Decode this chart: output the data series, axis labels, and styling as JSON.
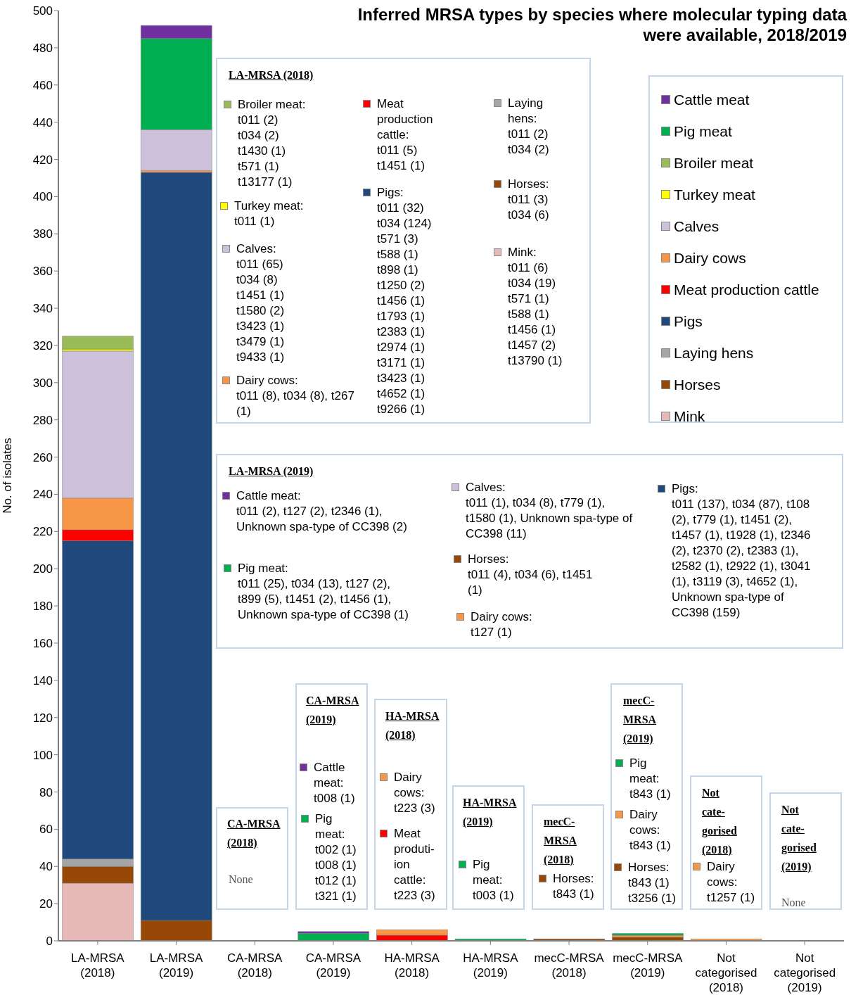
{
  "chart_data": {
    "type": "bar",
    "stacked": true,
    "title": "Inferred MRSA types by species where molecular typing data were available, 2018/2019",
    "ylabel": "No. of isolates",
    "categories": [
      "LA-MRSA (2018)",
      "LA-MRSA (2019)",
      "CA-MRSA (2018)",
      "CA-MRSA (2019)",
      "HA-MRSA (2018)",
      "HA-MRSA (2019)",
      "mecC-MRSA (2018)",
      "mecC-MRSA (2019)",
      "Not categorised (2018)",
      "Not categorised (2019)"
    ],
    "series": [
      {
        "name": "Mink",
        "color": "#e6b9b8",
        "values": [
          31,
          0,
          0,
          0,
          0,
          0,
          0,
          0,
          0,
          0
        ]
      },
      {
        "name": "Horses",
        "color": "#974706",
        "values": [
          9,
          11,
          0,
          0,
          0,
          0,
          1,
          2,
          0,
          0
        ]
      },
      {
        "name": "Laying hens",
        "color": "#a6a6a6",
        "values": [
          4,
          0,
          0,
          0,
          0,
          0,
          0,
          0,
          0,
          0
        ]
      },
      {
        "name": "Pigs",
        "color": "#1f497d",
        "values": [
          171,
          402,
          0,
          0,
          0,
          0,
          0,
          0,
          0,
          0
        ]
      },
      {
        "name": "Meat production cattle",
        "color": "#ff0000",
        "values": [
          6,
          0,
          0,
          0,
          3,
          0,
          0,
          0,
          0,
          0
        ]
      },
      {
        "name": "Dairy cows",
        "color": "#f79646",
        "values": [
          17,
          1,
          0,
          0,
          3,
          0,
          0,
          1,
          1,
          0
        ]
      },
      {
        "name": "Calves",
        "color": "#ccc0da",
        "values": [
          79,
          22,
          0,
          0,
          0,
          0,
          0,
          0,
          0,
          0
        ]
      },
      {
        "name": "Turkey meat",
        "color": "#ffff00",
        "values": [
          1,
          0,
          0,
          0,
          0,
          0,
          0,
          0,
          0,
          0
        ]
      },
      {
        "name": "Broiler meat",
        "color": "#9bbb59",
        "values": [
          7,
          0,
          0,
          0,
          0,
          0,
          0,
          0,
          0,
          0
        ]
      },
      {
        "name": "Pig meat",
        "color": "#00b050",
        "values": [
          0,
          49,
          0,
          4,
          0,
          1,
          0,
          1,
          0,
          0
        ]
      },
      {
        "name": "Cattle meat",
        "color": "#7030a0",
        "values": [
          0,
          7,
          0,
          1,
          0,
          0,
          0,
          0,
          0,
          0
        ]
      }
    ],
    "ylim": [
      0,
      500
    ],
    "yticks": [
      0,
      20,
      40,
      60,
      80,
      100,
      120,
      140,
      160,
      180,
      200,
      220,
      240,
      260,
      280,
      300,
      320,
      340,
      360,
      380,
      400,
      420,
      440,
      460,
      480,
      500
    ],
    "grid": false,
    "legend": "top right",
    "annotations": [
      "LA-MRSA (2018)",
      "Broiler meat:\nt011 (2)\nt034 (2)\nt1430 (1)\nt571 (1)\nt13177 (1)",
      "Turkey meat:\nt011 (1)",
      "Calves:\nt011 (65)\nt034 (8)\nt1451 (1)\nt1580 (2)\nt3423 (1)\nt3479 (1)\nt9433 (1)",
      "Dairy cows:\nt011 (8), t034 (8), t267 (1)",
      "Meat production cattle:\nt011 (5)\nt1451 (1)",
      "Pigs:\nt011 (32)\nt034 (124)\nt571 (3)\nt588 (1)\nt898 (1)\nt1250 (2)\nt1456 (1)\nt1793 (1)\nt2383 (1)\nt2974 (1)\nt3171 (1)\nt3423 (1)\nt4652 (1)\nt9266 (1)",
      "Laying hens:\nt011 (2)\nt034 (2)",
      "Horses:\nt011 (3)\nt034 (6)",
      "Mink:\nt011 (6)\nt034 (19)\nt571 (1)\nt588 (1)\nt1456 (1)\nt1457 (2)\nt13790 (1)",
      "LA-MRSA (2019)",
      "Cattle meat:\nt011 (2), t127 (2), t2346 (1), Unknown spa-type of CC398 (2)",
      "Pig meat:\nt011 (25), t034 (13), t127 (2), t899 (5), t1451 (2), t1456 (1), Unknown spa-type of CC398 (1)",
      "Calves:\nt011 (1), t034 (8), t779 (1), t1580 (1), Unknown spa-type of CC398 (11)",
      "Horses:\nt011 (4), t034 (6), t1451 (1)",
      "Dairy cows:\nt127 (1)",
      "Pigs:\nt011 (137), t034 (87), t108 (2), t779 (1), t1451 (2), t1457 (1), t1928 (1), t2346 (2), t2370 (2), t2383 (1), t2582 (1), t2922 (1), t3041 (1), t3119 (3), t4652 (1), Unknown spa-type of CC398 (159)",
      "CA-MRSA (2018)",
      "None",
      "CA-MRSA (2019)",
      "Cattle meat:\nt008 (1)",
      "Pig meat:\nt002 (1)\nt008 (1)\nt012 (1)\nt321 (1)",
      "HA-MRSA (2018)",
      "Dairy cows:\nt223 (3)",
      "Meat produti-ion cattle:\nt223 (3)",
      "HA-MRSA (2019)",
      "Pig meat:\nt003 (1)",
      "mecC-MRSA (2018)",
      "Horses:\nt843 (1)",
      "mecC-MRSA (2019)",
      "Pig meat:\nt843 (1)",
      "Dairy cows:\nt843 (1)",
      "Horses:\nt843 (1)\nt3256 (1)",
      "Not cate-gorised (2018)",
      "Dairy cows:\nt1257 (1)",
      "Not cate-gorised (2019)",
      "None"
    ]
  }
}
